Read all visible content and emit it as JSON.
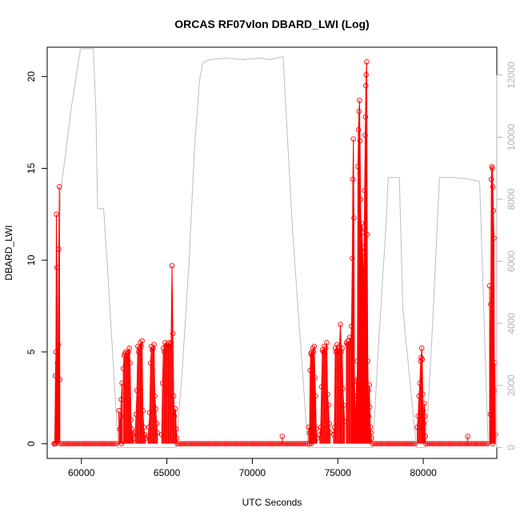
{
  "chart_data": {
    "type": "line",
    "title": "ORCAS RF07vlon DBARD_LWI (Log)",
    "xlabel": "UTC Seconds",
    "ylabel": "DBARD_LWI",
    "xlim": [
      58000,
      84300
    ],
    "ylim": [
      -0.8,
      21.6
    ],
    "y2lim": [
      -350,
      12900
    ],
    "x_ticks": [
      60000,
      65000,
      70000,
      75000,
      80000
    ],
    "y_ticks": [
      0,
      5,
      10,
      15,
      20
    ],
    "y2_ticks": [
      0,
      2000,
      4000,
      6000,
      8000,
      10000,
      12000
    ],
    "grid": false,
    "legend": "none",
    "colors": {
      "primary": "#ff0000",
      "secondary": "#bebebe",
      "axis": "#000000",
      "right_axis": "#b3b3b3"
    },
    "series": [
      {
        "role": "primary",
        "style": "red line with open circle markers",
        "baseline_segments": [
          [
            58400,
            58560
          ],
          [
            58760,
            62150
          ],
          [
            62350,
            62450
          ],
          [
            65600,
            73250
          ],
          [
            73350,
            73550
          ],
          [
            77050,
            79600
          ],
          [
            80150,
            83850
          ],
          [
            84050,
            84100
          ]
        ],
        "points": [
          [
            58450,
            0
          ],
          [
            58480,
            3.7
          ],
          [
            58510,
            5.0
          ],
          [
            58540,
            12.5
          ],
          [
            58570,
            9.6
          ],
          [
            58600,
            4.4
          ],
          [
            58620,
            3.5
          ],
          [
            58650,
            5.4
          ],
          [
            58680,
            10.6
          ],
          [
            58710,
            14.0
          ],
          [
            58740,
            3.5
          ],
          [
            62200,
            1.8
          ],
          [
            62250,
            0.8
          ],
          [
            62290,
            1.5
          ],
          [
            62330,
            2.4
          ],
          [
            62380,
            3.3
          ],
          [
            62450,
            4.1
          ],
          [
            62500,
            4.8
          ],
          [
            62550,
            4.9
          ],
          [
            62600,
            5.0
          ],
          [
            62650,
            4.6
          ],
          [
            62700,
            4.9
          ],
          [
            62750,
            5.0
          ],
          [
            62800,
            5.2
          ],
          [
            62850,
            4.4
          ],
          [
            62900,
            1.3
          ],
          [
            62950,
            0.8
          ],
          [
            63000,
            0.5
          ],
          [
            63050,
            0.3
          ],
          [
            63150,
            0.6
          ],
          [
            63200,
            1.6
          ],
          [
            63250,
            2.9
          ],
          [
            63300,
            5.3
          ],
          [
            63350,
            5.0
          ],
          [
            63400,
            5.2
          ],
          [
            63450,
            5.5
          ],
          [
            63500,
            5.3
          ],
          [
            63550,
            5.6
          ],
          [
            63600,
            1.8
          ],
          [
            63650,
            0.9
          ],
          [
            63700,
            0.5
          ],
          [
            63750,
            0.3
          ],
          [
            63900,
            0.4
          ],
          [
            63950,
            0.9
          ],
          [
            64000,
            1.7
          ],
          [
            64050,
            4.4
          ],
          [
            64100,
            5.3
          ],
          [
            64150,
            5.1
          ],
          [
            64200,
            5.2
          ],
          [
            64250,
            5.4
          ],
          [
            64300,
            2.6
          ],
          [
            64350,
            1.9
          ],
          [
            64400,
            1.1
          ],
          [
            64450,
            0.6
          ],
          [
            64700,
            0.5
          ],
          [
            64750,
            3.3
          ],
          [
            64800,
            5.2
          ],
          [
            64850,
            5.0
          ],
          [
            64900,
            5.5
          ],
          [
            64950,
            5.3
          ],
          [
            65000,
            5.4
          ],
          [
            65050,
            5.2
          ],
          [
            65100,
            5.5
          ],
          [
            65150,
            5.3
          ],
          [
            65200,
            5.4
          ],
          [
            65250,
            5.5
          ],
          [
            65300,
            9.7
          ],
          [
            65350,
            6.0
          ],
          [
            65400,
            2.6
          ],
          [
            65450,
            1.5
          ],
          [
            65500,
            1.9
          ],
          [
            65550,
            0.8
          ],
          [
            65580,
            0.3
          ],
          [
            71750,
            0.4
          ],
          [
            73300,
            0.9
          ],
          [
            73350,
            0.6
          ],
          [
            73380,
            4.0
          ],
          [
            73420,
            4.9
          ],
          [
            73460,
            5.0
          ],
          [
            73500,
            4.8
          ],
          [
            73540,
            5.2
          ],
          [
            73580,
            5.0
          ],
          [
            73620,
            5.3
          ],
          [
            73660,
            3.6
          ],
          [
            73700,
            2.6
          ],
          [
            73740,
            0.8
          ],
          [
            73780,
            0.3
          ],
          [
            73950,
            0.5
          ],
          [
            74000,
            0.9
          ],
          [
            74050,
            3.1
          ],
          [
            74100,
            5.1
          ],
          [
            74150,
            5.0
          ],
          [
            74200,
            5.3
          ],
          [
            74250,
            4.9
          ],
          [
            74300,
            5.2
          ],
          [
            74350,
            5.5
          ],
          [
            74400,
            2.7
          ],
          [
            74450,
            2.1
          ],
          [
            74500,
            1.1
          ],
          [
            74550,
            0.6
          ],
          [
            74750,
            0.5
          ],
          [
            74800,
            0.9
          ],
          [
            74850,
            5.2
          ],
          [
            74900,
            5.0
          ],
          [
            74950,
            5.4
          ],
          [
            75000,
            5.1
          ],
          [
            75050,
            5.0
          ],
          [
            75100,
            5.3
          ],
          [
            75150,
            6.5
          ],
          [
            75200,
            5.0
          ],
          [
            75250,
            5.2
          ],
          [
            75300,
            3.0
          ],
          [
            75350,
            2.1
          ],
          [
            75400,
            1.2
          ],
          [
            75500,
            5.5
          ],
          [
            75550,
            5.4
          ],
          [
            75600,
            5.6
          ],
          [
            75650,
            5.3
          ],
          [
            75700,
            5.8
          ],
          [
            75750,
            5.4
          ],
          [
            75800,
            6.4
          ],
          [
            75850,
            10.1
          ],
          [
            75880,
            14.4
          ],
          [
            75910,
            16.6
          ],
          [
            75940,
            12.3
          ],
          [
            75970,
            3.5
          ],
          [
            76000,
            2.4
          ],
          [
            76030,
            1.8
          ],
          [
            76060,
            1.2
          ],
          [
            76090,
            3.4
          ],
          [
            76120,
            2.6
          ],
          [
            76150,
            4.5
          ],
          [
            76180,
            15.1
          ],
          [
            76210,
            17.1
          ],
          [
            76240,
            18.1
          ],
          [
            76270,
            18.7
          ],
          [
            76300,
            16.5
          ],
          [
            76330,
            13.3
          ],
          [
            76360,
            11.7
          ],
          [
            76390,
            12.0
          ],
          [
            76420,
            11.5
          ],
          [
            76450,
            10.4
          ],
          [
            76480,
            9.3
          ],
          [
            76510,
            8.7
          ],
          [
            76540,
            10.7
          ],
          [
            76570,
            13.8
          ],
          [
            76600,
            16.8
          ],
          [
            76620,
            17.8
          ],
          [
            76640,
            19.5
          ],
          [
            76660,
            20.1
          ],
          [
            76690,
            20.8
          ],
          [
            76720,
            11.4
          ],
          [
            76750,
            4.5
          ],
          [
            76780,
            2.9
          ],
          [
            76810,
            1.5
          ],
          [
            76840,
            3.2
          ],
          [
            76870,
            2.0
          ],
          [
            76900,
            0.9
          ],
          [
            76930,
            0.6
          ],
          [
            76960,
            0.3
          ],
          [
            79650,
            0.9
          ],
          [
            79700,
            1.5
          ],
          [
            79750,
            2.6
          ],
          [
            79800,
            3.3
          ],
          [
            79850,
            4.5
          ],
          [
            79880,
            4.7
          ],
          [
            79910,
            5.2
          ],
          [
            79940,
            4.6
          ],
          [
            79970,
            2.7
          ],
          [
            80000,
            1.8
          ],
          [
            80030,
            1.1
          ],
          [
            80060,
            2.2
          ],
          [
            80090,
            1.5
          ],
          [
            80120,
            0.4
          ],
          [
            82600,
            0.4
          ],
          [
            83880,
            8.6
          ],
          [
            83920,
            1.6
          ],
          [
            83950,
            7.6
          ],
          [
            83980,
            14.4
          ],
          [
            84010,
            15.1
          ],
          [
            84040,
            15.0
          ],
          [
            84070,
            14.0
          ],
          [
            84100,
            12.7
          ],
          [
            84130,
            11.2
          ],
          [
            84160,
            2.9
          ],
          [
            84190,
            4.4
          ],
          [
            84220,
            0.5
          ]
        ]
      },
      {
        "role": "secondary",
        "axis": "right",
        "style": "light gray line",
        "points": [
          [
            58400,
            0
          ],
          [
            58420,
            200
          ],
          [
            58600,
            3500
          ],
          [
            58780,
            8200
          ],
          [
            59400,
            10900
          ],
          [
            59950,
            12850
          ],
          [
            60700,
            12850
          ],
          [
            60850,
            10800
          ],
          [
            60950,
            7700
          ],
          [
            61300,
            7700
          ],
          [
            61550,
            5600
          ],
          [
            62150,
            0
          ],
          [
            65550,
            0
          ],
          [
            65900,
            2500
          ],
          [
            66300,
            6000
          ],
          [
            66600,
            9500
          ],
          [
            66900,
            11800
          ],
          [
            67100,
            12400
          ],
          [
            67500,
            12500
          ],
          [
            68500,
            12550
          ],
          [
            69500,
            12500
          ],
          [
            70500,
            12550
          ],
          [
            71000,
            12500
          ],
          [
            71800,
            12600
          ],
          [
            72350,
            7000
          ],
          [
            73250,
            0
          ],
          [
            77050,
            0
          ],
          [
            77400,
            3500
          ],
          [
            77800,
            7000
          ],
          [
            77950,
            8700
          ],
          [
            78600,
            8700
          ],
          [
            78800,
            4500
          ],
          [
            79600,
            0
          ],
          [
            80150,
            0
          ],
          [
            80500,
            3500
          ],
          [
            80950,
            8700
          ],
          [
            81800,
            8700
          ],
          [
            82600,
            8650
          ],
          [
            83100,
            8600
          ],
          [
            83300,
            8550
          ],
          [
            83800,
            0
          ]
        ]
      }
    ]
  }
}
